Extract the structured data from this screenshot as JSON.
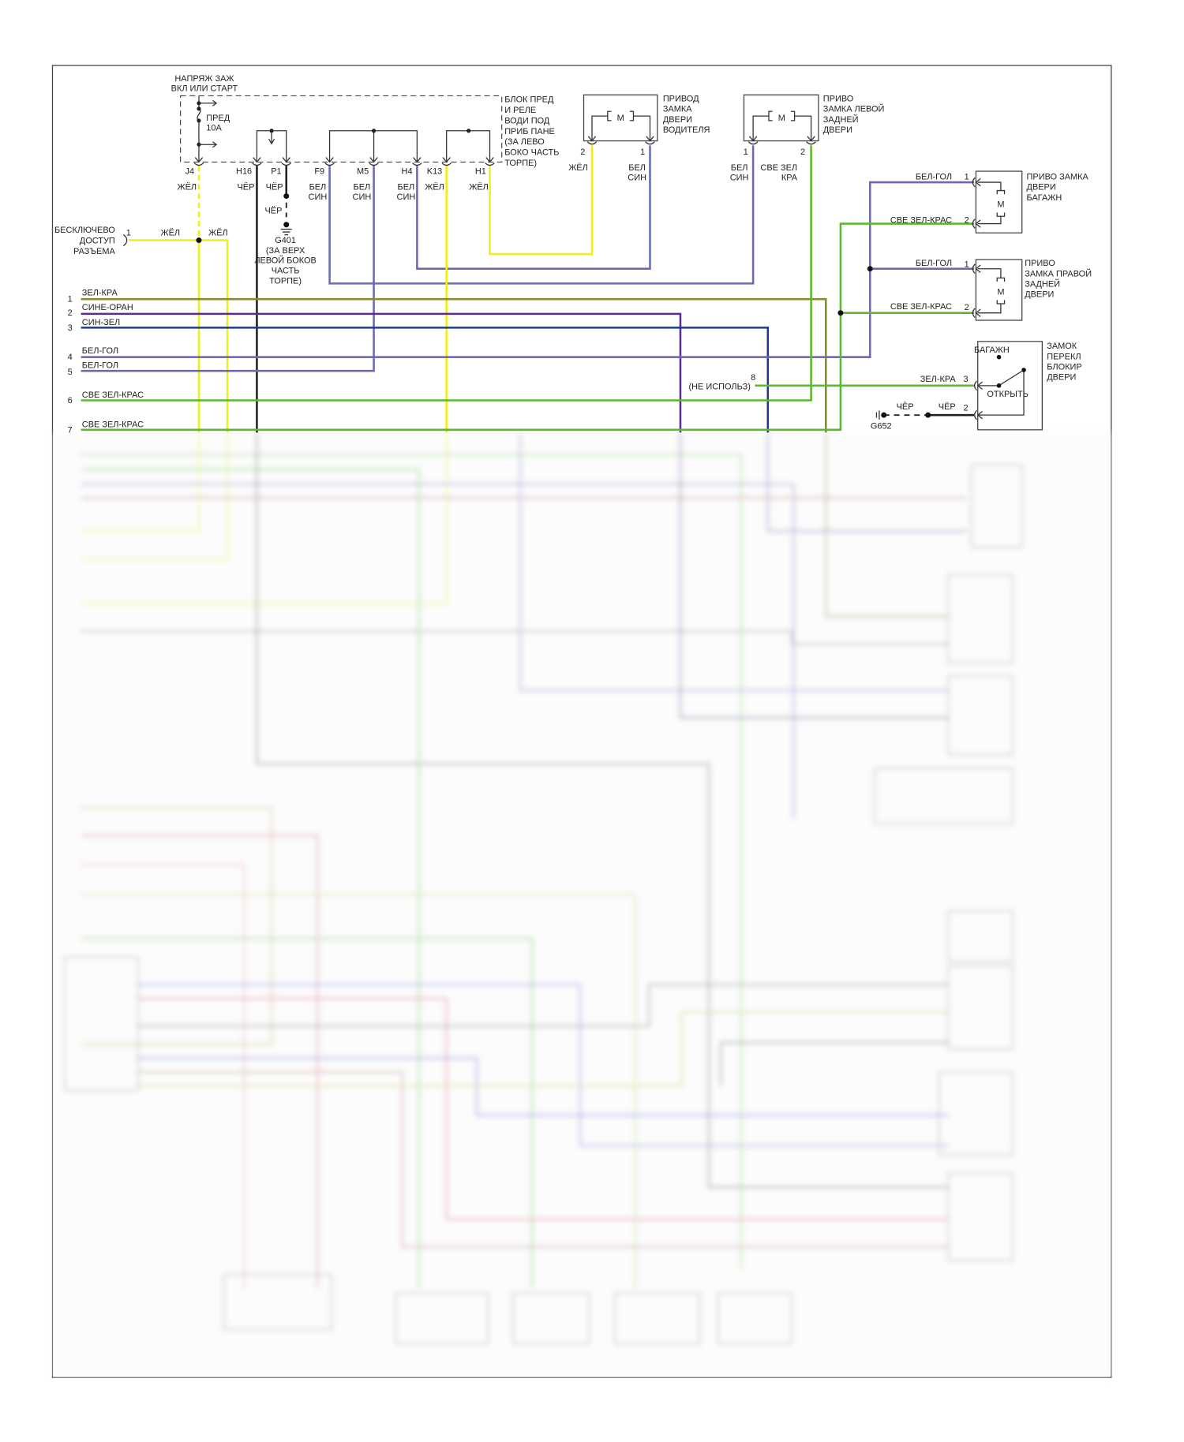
{
  "diagram": {
    "supply": {
      "label": [
        "НАПРЯЖ ЗАЖ",
        "ВКЛ ИЛИ СТАРТ"
      ],
      "fuse": [
        "ПРЕД",
        "10А"
      ]
    },
    "fuse_block": {
      "label": [
        "БЛОК ПРЕД",
        "И РЕЛЕ",
        "ВОДИ ПОД",
        "ПРИБ ПАНЕ",
        "(ЗА ЛЕВО",
        "БОКО ЧАСТЬ",
        "ТОРПЕ)"
      ],
      "pins": [
        {
          "id": "J4",
          "wire": [
            "ЖЁЛ"
          ]
        },
        {
          "id": "H16",
          "wire": [
            "ЧЁР"
          ]
        },
        {
          "id": "P1",
          "wire": [
            "ЧЁР"
          ]
        },
        {
          "id": "F9",
          "wire": [
            "БЕЛ",
            "СИН"
          ]
        },
        {
          "id": "M5",
          "wire": [
            "БЕЛ",
            "СИН"
          ]
        },
        {
          "id": "H4",
          "wire": [
            "БЕЛ",
            "СИН"
          ]
        },
        {
          "id": "K13",
          "wire": [
            "ЖЁЛ"
          ]
        },
        {
          "id": "H1",
          "wire": [
            "ЖЁЛ"
          ]
        }
      ]
    },
    "ground_g401": {
      "wire": "ЧЁР",
      "label": [
        "G401",
        "(ЗА ВЕРХ",
        "ЛЕВОЙ БОКОВ",
        "ЧАСТЬ",
        "ТОРПЕ)"
      ]
    },
    "keyless": {
      "label": [
        "БЕСКЛЮЧЕВО",
        "ДОСТУП",
        "РАЗЪЕМА"
      ],
      "pin": "1",
      "wire_left": "ЖЁЛ",
      "wire_right": "ЖЁЛ"
    },
    "driver_actuator": {
      "label": [
        "ПРИВОД",
        "ЗАМКА",
        "ДВЕРИ",
        "ВОДИТЕЛЯ"
      ],
      "motor": "M",
      "pins": [
        {
          "num": "2",
          "wire": [
            "ЖЁЛ"
          ]
        },
        {
          "num": "1",
          "wire": [
            "БЕЛ",
            "СИН"
          ]
        }
      ]
    },
    "left_rear_actuator": {
      "label": [
        "ПРИВО",
        "ЗАМКА ЛЕВОЙ",
        "ЗАДНЕЙ",
        "ДВЕРИ"
      ],
      "motor": "M",
      "pins": [
        {
          "num": "1",
          "wire": [
            "БЕЛ",
            "СИН"
          ]
        },
        {
          "num": "2",
          "wire": [
            "СВЕ ЗЕЛ",
            "КРА"
          ]
        }
      ]
    },
    "trunk_actuator": {
      "label": [
        "ПРИВО ЗАМКА",
        "ДВЕРИ",
        "БАГАЖН"
      ],
      "motor": "M",
      "pins": [
        {
          "num": "1",
          "wire": "БЕЛ-ГОЛ"
        },
        {
          "num": "2",
          "wire": "СВЕ ЗЕЛ-КРАС"
        }
      ]
    },
    "right_rear_actuator": {
      "label": [
        "ПРИВО",
        "ЗАМКА ПРАВОЙ",
        "ЗАДНЕЙ",
        "ДВЕРИ"
      ],
      "motor": "M",
      "pins": [
        {
          "num": "1",
          "wire": "БЕЛ-ГОЛ"
        },
        {
          "num": "2",
          "wire": "СВЕ ЗЕЛ-КРАС"
        }
      ]
    },
    "lock_switch": {
      "label": [
        "ЗАМОК",
        "ПЕРЕКЛ",
        "БЛОКИР",
        "ДВЕРИ"
      ],
      "position_top": "БАГАЖН",
      "position_open": "ОТКРЫТЬ",
      "pins": [
        {
          "num": "3",
          "wire": "ЗЕЛ-КРА"
        },
        {
          "num": "2",
          "wire": "ЧЁР"
        }
      ],
      "ground": "G652",
      "ground_wire": "ЧЁР"
    },
    "unused_pin": {
      "num": "8",
      "label": "(НЕ ИСПОЛЬЗ)"
    },
    "harness": [
      {
        "num": "1",
        "wire": "ЗЕЛ-КРА"
      },
      {
        "num": "2",
        "wire": "СИНЕ-ОРАН"
      },
      {
        "num": "3",
        "wire": "СИН-ЗЕЛ"
      },
      {
        "num": "4",
        "wire": "БЕЛ-ГОЛ"
      },
      {
        "num": "5",
        "wire": "БЕЛ-ГОЛ"
      },
      {
        "num": "6",
        "wire": "СВЕ ЗЕЛ-КРАС"
      },
      {
        "num": "7",
        "wire": "СВЕ ЗЕЛ-КРАС"
      }
    ]
  },
  "colors": {
    "yellow": "#f0f014",
    "black": "#222222",
    "white_blue": "#6b6bb5",
    "light_green_red": "#5cb82e",
    "green_red": "#8c8a2e",
    "blue_orange": "#5a2d90",
    "blue_green": "#1f3a8a"
  }
}
